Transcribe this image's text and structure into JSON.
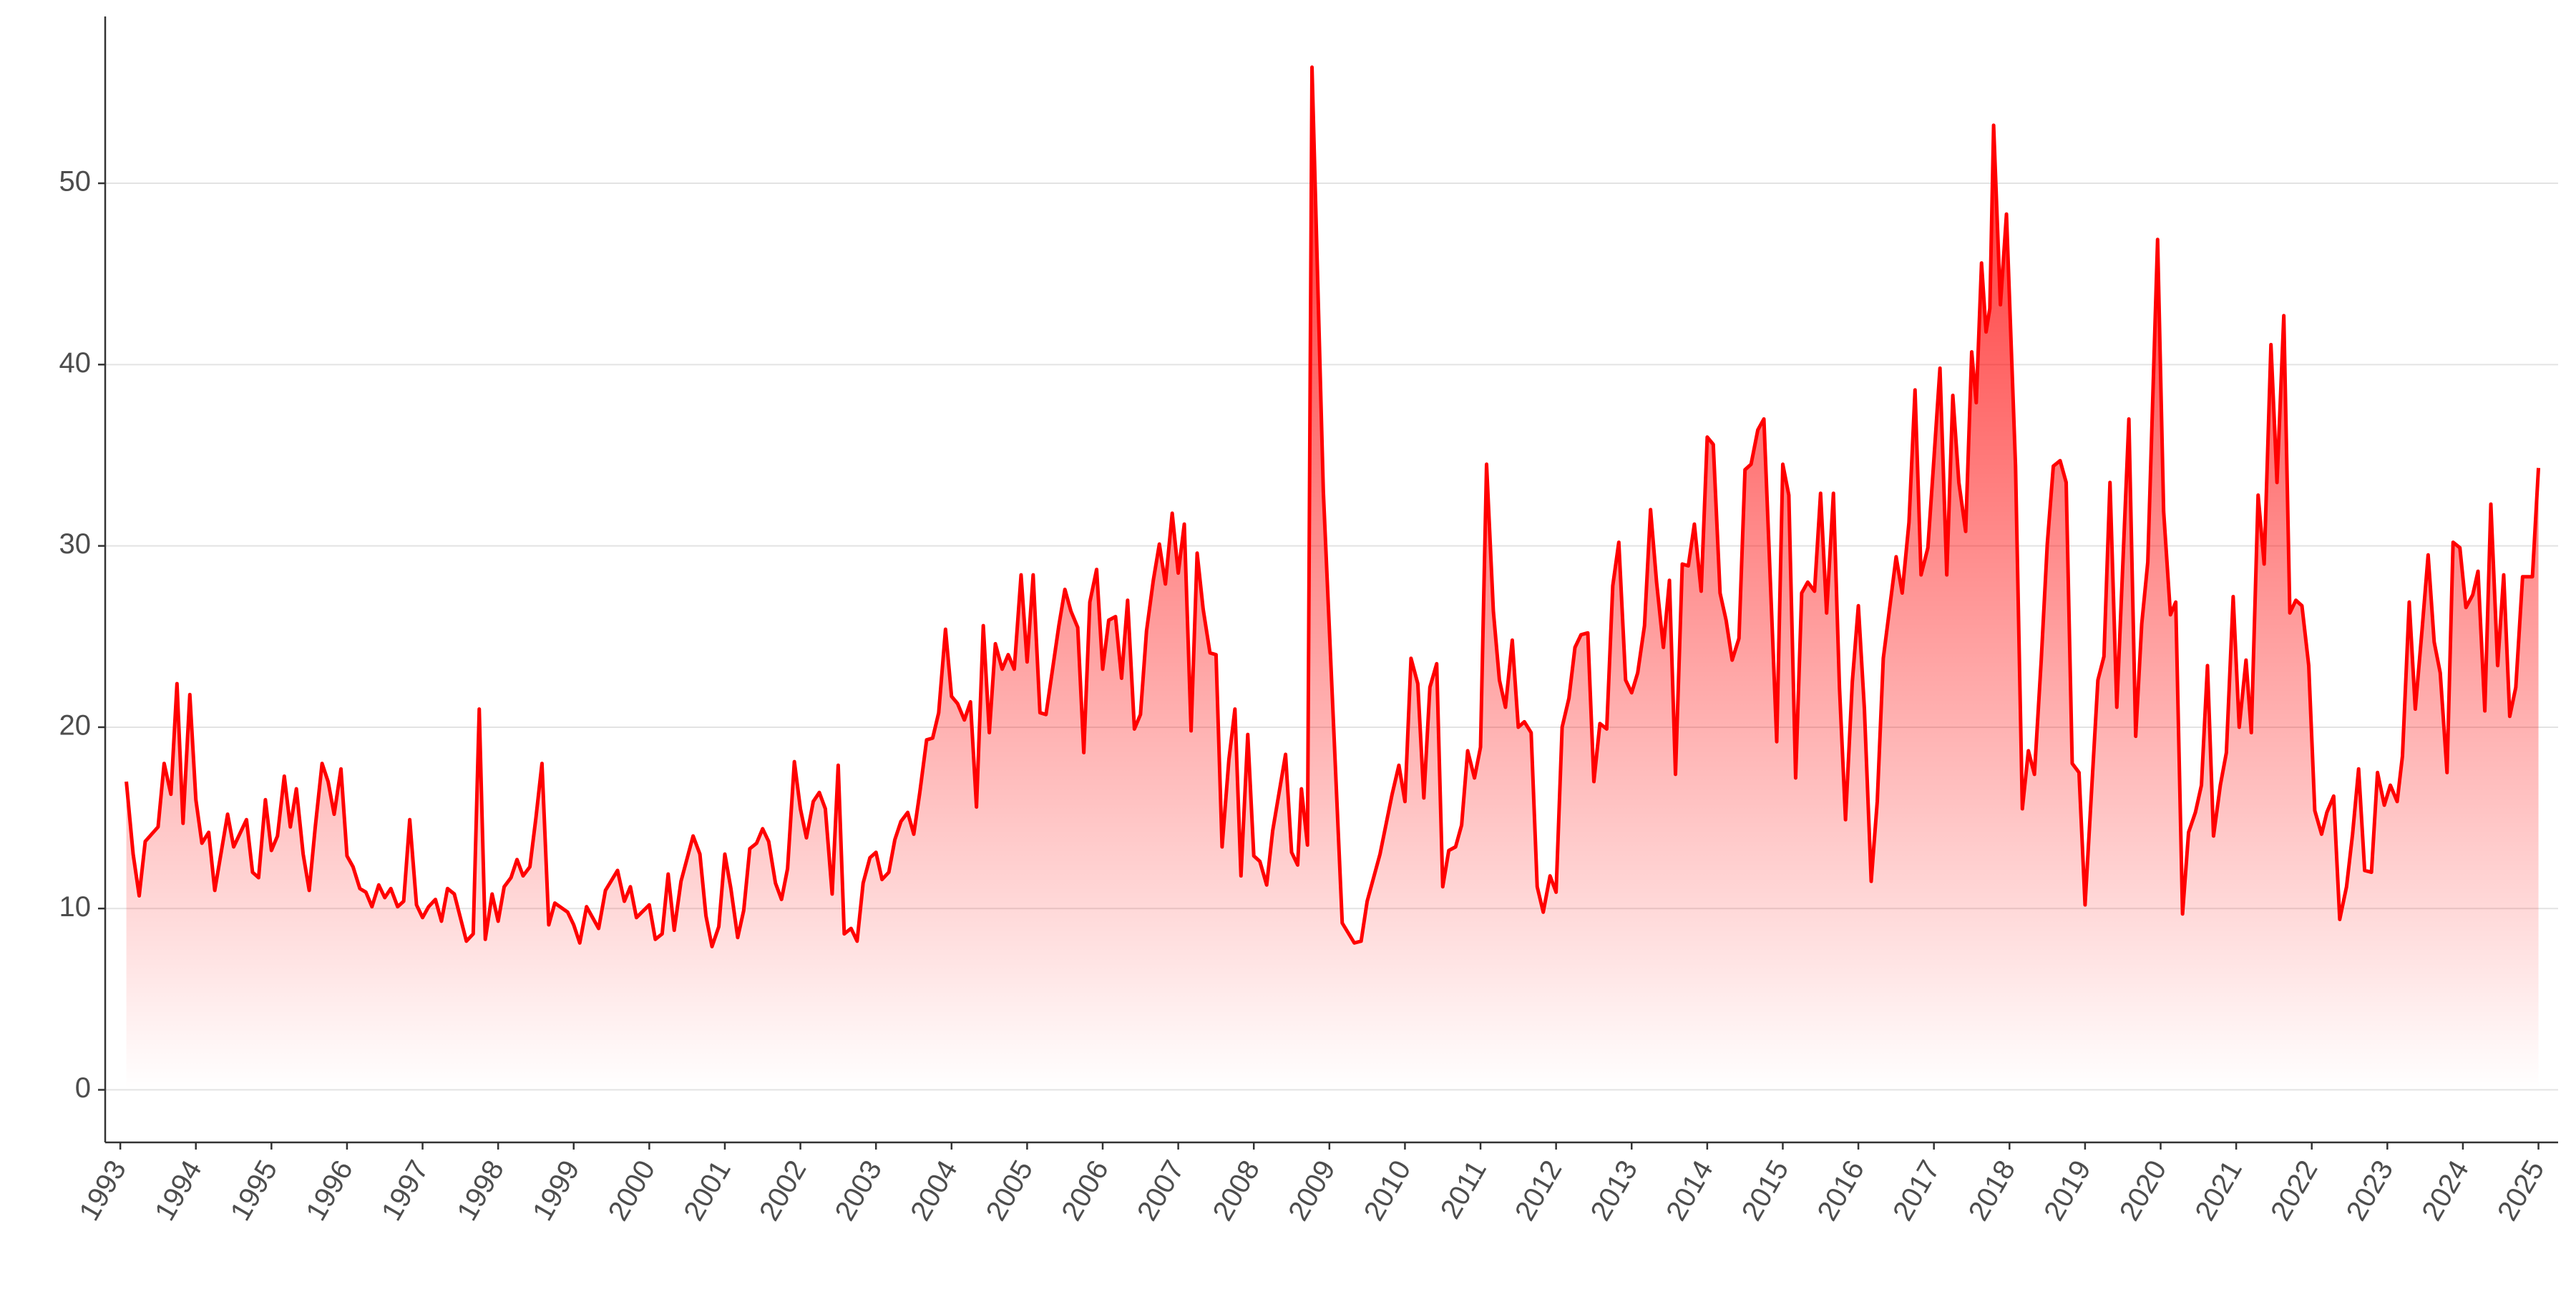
{
  "chart_data": {
    "type": "area",
    "x": [
      1993.08,
      1993.17,
      1993.25,
      1993.33,
      1993.5,
      1993.58,
      1993.67,
      1993.75,
      1993.83,
      1993.92,
      1994.0,
      1994.08,
      1994.17,
      1994.25,
      1994.42,
      1994.5,
      1994.67,
      1994.75,
      1994.83,
      1994.92,
      1995.0,
      1995.08,
      1995.17,
      1995.25,
      1995.33,
      1995.42,
      1995.5,
      1995.58,
      1995.67,
      1995.75,
      1995.83,
      1995.92,
      1996.0,
      1996.08,
      1996.17,
      1996.25,
      1996.33,
      1996.42,
      1996.5,
      1996.58,
      1996.67,
      1996.75,
      1996.83,
      1996.92,
      1997.0,
      1997.08,
      1997.17,
      1997.25,
      1997.33,
      1997.42,
      1997.58,
      1997.67,
      1997.75,
      1997.83,
      1997.92,
      1998.0,
      1998.08,
      1998.17,
      1998.25,
      1998.33,
      1998.42,
      1998.5,
      1998.58,
      1998.67,
      1998.75,
      1998.92,
      1999.0,
      1999.08,
      1999.17,
      1999.33,
      1999.42,
      1999.58,
      1999.67,
      1999.75,
      1999.83,
      2000.0,
      2000.08,
      2000.17,
      2000.25,
      2000.33,
      2000.42,
      2000.58,
      2000.67,
      2000.75,
      2000.83,
      2000.92,
      2001.0,
      2001.08,
      2001.17,
      2001.25,
      2001.33,
      2001.42,
      2001.5,
      2001.58,
      2001.67,
      2001.75,
      2001.83,
      2001.92,
      2002.0,
      2002.08,
      2002.17,
      2002.25,
      2002.33,
      2002.42,
      2002.5,
      2002.58,
      2002.67,
      2002.75,
      2002.83,
      2002.92,
      2003.0,
      2003.08,
      2003.17,
      2003.25,
      2003.33,
      2003.42,
      2003.5,
      2003.58,
      2003.67,
      2003.75,
      2003.83,
      2003.92,
      2004.0,
      2004.08,
      2004.17,
      2004.25,
      2004.33,
      2004.42,
      2004.5,
      2004.58,
      2004.67,
      2004.75,
      2004.83,
      2004.92,
      2005.0,
      2005.08,
      2005.17,
      2005.25,
      2005.42,
      2005.5,
      2005.58,
      2005.67,
      2005.75,
      2005.83,
      2005.92,
      2006.0,
      2006.08,
      2006.17,
      2006.25,
      2006.33,
      2006.42,
      2006.5,
      2006.58,
      2006.67,
      2006.75,
      2006.83,
      2006.92,
      2007.0,
      2007.08,
      2007.17,
      2007.25,
      2007.33,
      2007.42,
      2007.5,
      2007.58,
      2007.67,
      2007.75,
      2007.83,
      2007.92,
      2008.0,
      2008.08,
      2008.17,
      2008.25,
      2008.42,
      2008.5,
      2008.58,
      2008.63,
      2008.71,
      2008.77,
      2008.92,
      2009.17,
      2009.33,
      2009.42,
      2009.5,
      2009.67,
      2009.83,
      2009.92,
      2010.0,
      2010.08,
      2010.17,
      2010.25,
      2010.33,
      2010.42,
      2010.5,
      2010.58,
      2010.67,
      2010.75,
      2010.83,
      2010.92,
      2011.0,
      2011.08,
      2011.17,
      2011.25,
      2011.33,
      2011.42,
      2011.5,
      2011.58,
      2011.67,
      2011.75,
      2011.83,
      2011.92,
      2012.0,
      2012.08,
      2012.17,
      2012.25,
      2012.33,
      2012.42,
      2012.5,
      2012.58,
      2012.67,
      2012.75,
      2012.83,
      2012.92,
      2013.0,
      2013.08,
      2013.17,
      2013.25,
      2013.33,
      2013.42,
      2013.5,
      2013.58,
      2013.67,
      2013.75,
      2013.83,
      2013.92,
      2014.0,
      2014.08,
      2014.17,
      2014.25,
      2014.33,
      2014.42,
      2014.5,
      2014.58,
      2014.67,
      2014.75,
      2014.92,
      2015.0,
      2015.08,
      2015.17,
      2015.25,
      2015.33,
      2015.42,
      2015.5,
      2015.58,
      2015.67,
      2015.75,
      2015.83,
      2015.92,
      2016.0,
      2016.08,
      2016.17,
      2016.25,
      2016.33,
      2016.5,
      2016.58,
      2016.67,
      2016.75,
      2016.83,
      2016.92,
      2017.0,
      2017.08,
      2017.17,
      2017.25,
      2017.33,
      2017.42,
      2017.5,
      2017.56,
      2017.63,
      2017.69,
      2017.74,
      2017.79,
      2017.88,
      2017.96,
      2018.08,
      2018.17,
      2018.25,
      2018.33,
      2018.42,
      2018.5,
      2018.58,
      2018.67,
      2018.75,
      2018.83,
      2018.92,
      2019.0,
      2019.17,
      2019.25,
      2019.33,
      2019.42,
      2019.5,
      2019.58,
      2019.67,
      2019.75,
      2019.83,
      2019.96,
      2020.04,
      2020.13,
      2020.2,
      2020.29,
      2020.37,
      2020.46,
      2020.54,
      2020.62,
      2020.7,
      2020.79,
      2020.87,
      2020.96,
      2021.04,
      2021.13,
      2021.2,
      2021.29,
      2021.37,
      2021.46,
      2021.54,
      2021.63,
      2021.71,
      2021.79,
      2021.87,
      2021.96,
      2022.04,
      2022.13,
      2022.2,
      2022.29,
      2022.37,
      2022.46,
      2022.54,
      2022.62,
      2022.7,
      2022.79,
      2022.87,
      2022.96,
      2023.04,
      2023.13,
      2023.2,
      2023.29,
      2023.37,
      2023.46,
      2023.54,
      2023.62,
      2023.7,
      2023.79,
      2023.87,
      2023.96,
      2024.04,
      2024.13,
      2024.2,
      2024.29,
      2024.37,
      2024.46,
      2024.54,
      2024.62,
      2024.7,
      2024.79,
      2024.92,
      2025.0
    ],
    "values": [
      17,
      13,
      10.7,
      13.7,
      14.5,
      18,
      16.3,
      22.4,
      14.7,
      21.8,
      16,
      13.6,
      14.2,
      11,
      15.2,
      13.4,
      14.9,
      12,
      11.7,
      16,
      13.2,
      14,
      17.3,
      14.5,
      16.6,
      13,
      11,
      14.5,
      18,
      17,
      15.2,
      17.7,
      12.9,
      12.3,
      11.1,
      10.9,
      10.1,
      11.3,
      10.6,
      11.1,
      10.1,
      10.4,
      14.9,
      10.2,
      9.5,
      10.1,
      10.5,
      9.3,
      11.1,
      10.8,
      8.2,
      8.6,
      21,
      8.3,
      10.8,
      9.3,
      11.2,
      11.7,
      12.7,
      11.8,
      12.3,
      15,
      18,
      9.1,
      10.3,
      9.8,
      9.1,
      8.1,
      10.1,
      8.9,
      11,
      12.1,
      10.4,
      11.2,
      9.5,
      10.2,
      8.3,
      8.6,
      11.9,
      8.8,
      11.5,
      14,
      13,
      9.6,
      7.9,
      9,
      13,
      11.1,
      8.4,
      9.9,
      13.3,
      13.6,
      14.4,
      13.7,
      11.4,
      10.5,
      12.2,
      18.1,
      15.5,
      13.9,
      15.9,
      16.4,
      15.5,
      10.8,
      17.9,
      8.6,
      8.9,
      8.2,
      11.4,
      12.8,
      13.1,
      11.6,
      12,
      13.8,
      14.8,
      15.3,
      14.1,
      16.4,
      19.3,
      19.4,
      20.8,
      25.4,
      21.7,
      21.3,
      20.4,
      21.4,
      15.6,
      25.6,
      19.7,
      24.6,
      23.2,
      24,
      23.2,
      28.4,
      23.6,
      28.4,
      20.8,
      20.7,
      25.6,
      27.6,
      26.4,
      25.5,
      18.6,
      26.9,
      28.7,
      23.2,
      25.9,
      26.1,
      22.7,
      27,
      19.9,
      20.7,
      25.3,
      28.1,
      30.1,
      27.9,
      31.8,
      28.5,
      31.2,
      19.8,
      29.6,
      26.5,
      24.1,
      24,
      13.4,
      18.2,
      21,
      11.8,
      19.6,
      12.9,
      12.6,
      11.3,
      14.3,
      18.5,
      13.1,
      12.4,
      16.6,
      13.5,
      56.4,
      33,
      9.2,
      8.1,
      8.2,
      10.4,
      13,
      16.3,
      17.9,
      15.9,
      23.8,
      22.4,
      16.1,
      22.2,
      23.5,
      11.2,
      13.2,
      13.4,
      14.6,
      18.7,
      17.2,
      18.9,
      34.5,
      26.4,
      22.6,
      21.1,
      24.8,
      20,
      20.3,
      19.7,
      11.2,
      9.8,
      11.8,
      10.9,
      20,
      21.6,
      24.4,
      25.1,
      25.2,
      17,
      20.2,
      19.9,
      27.8,
      30.2,
      22.6,
      21.9,
      23,
      25.6,
      32,
      28,
      24.4,
      28.1,
      17.4,
      29,
      28.9,
      31.2,
      27.5,
      36,
      35.6,
      27.4,
      25.9,
      23.7,
      24.9,
      34.2,
      34.5,
      36.4,
      37,
      19.2,
      34.5,
      32.8,
      17.2,
      27.4,
      28,
      27.5,
      32.9,
      26.3,
      32.9,
      22.2,
      14.9,
      22.5,
      26.7,
      21,
      11.5,
      15.9,
      23.8,
      29.4,
      27.4,
      31.3,
      38.6,
      28.4,
      29.9,
      34.8,
      39.8,
      28.4,
      38.3,
      33.5,
      30.8,
      40.7,
      37.9,
      45.6,
      41.8,
      43.1,
      53.2,
      43.3,
      48.3,
      34.4,
      15.5,
      18.7,
      17.4,
      23.7,
      30.1,
      34.4,
      34.7,
      33.5,
      18,
      17.5,
      10.2,
      22.6,
      23.9,
      33.5,
      21.1,
      29,
      37,
      19.5,
      25.7,
      29.1,
      46.9,
      31.9,
      26.2,
      26.9,
      9.7,
      14.2,
      15.3,
      16.8,
      23.4,
      14,
      16.8,
      18.6,
      27.2,
      20,
      23.7,
      19.7,
      32.8,
      29,
      41.1,
      33.5,
      42.7,
      26.3,
      27,
      26.7,
      23.4,
      15.4,
      14.1,
      15.3,
      16.2,
      9.4,
      11.2,
      14.1,
      17.7,
      12.1,
      12,
      17.5,
      15.7,
      16.8,
      15.9,
      18.4,
      26.9,
      21,
      25.4,
      29.5,
      24.7,
      23,
      17.5,
      30.2,
      29.9,
      26.6,
      27.3,
      28.6,
      20.9,
      32.3,
      23.4,
      28.4,
      20.6,
      22.2,
      28.3,
      28.3,
      34.3
    ],
    "color": "#ff0000",
    "xlim": [
      1992.8,
      2025.26
    ],
    "ylim": [
      -2.9,
      59.2
    ],
    "xticks": [
      1993,
      1994,
      1995,
      1996,
      1997,
      1998,
      1999,
      2000,
      2001,
      2002,
      2003,
      2004,
      2005,
      2006,
      2007,
      2008,
      2009,
      2010,
      2011,
      2012,
      2013,
      2014,
      2015,
      2016,
      2017,
      2018,
      2019,
      2020,
      2021,
      2022,
      2023,
      2024,
      2025
    ],
    "yticks": [
      0,
      10,
      20,
      30,
      40,
      50
    ],
    "grid": true
  }
}
